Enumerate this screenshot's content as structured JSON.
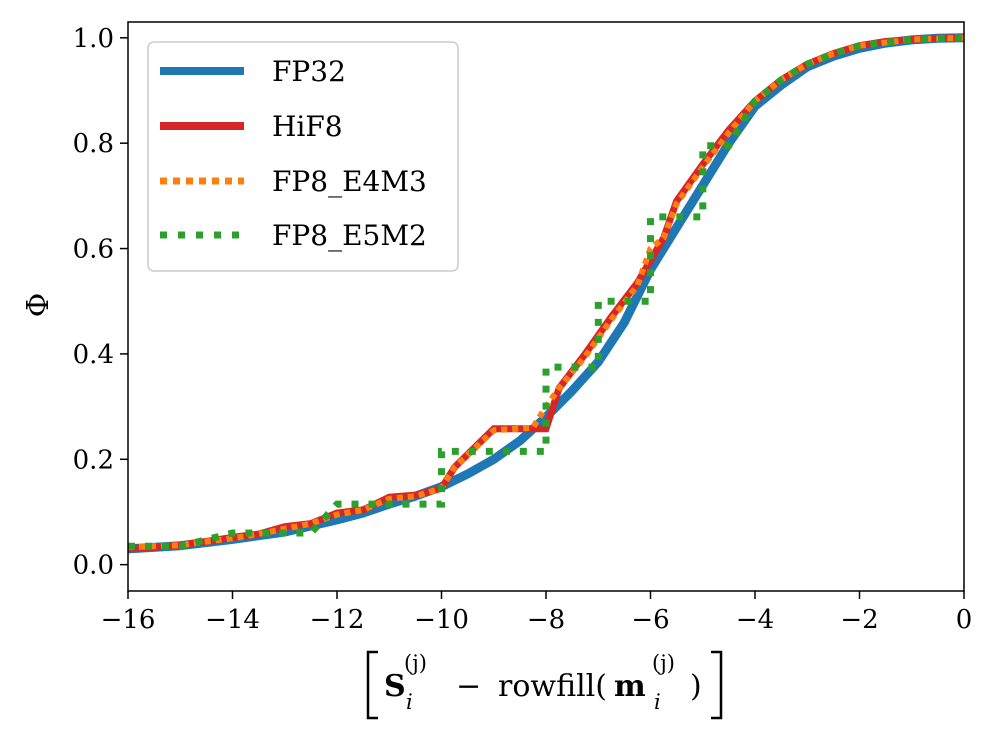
{
  "chart_data": {
    "type": "line",
    "title": "",
    "xlabel_parts": {
      "S": "S",
      "sub_i": "i",
      "sup_j": "(j)",
      "minus": "−",
      "rowfill": "rowfill(",
      "m": "m",
      "close": ")"
    },
    "ylabel": "Φ",
    "xlim": [
      -16,
      0
    ],
    "ylim": [
      -0.05,
      1.03
    ],
    "xticks": [
      -16,
      -14,
      -12,
      -10,
      -8,
      -6,
      -4,
      -2,
      0
    ],
    "xtick_labels": [
      "−16",
      "−14",
      "−12",
      "−10",
      "−8",
      "−6",
      "−4",
      "−2",
      "0"
    ],
    "yticks": [
      0.0,
      0.2,
      0.4,
      0.6,
      0.8,
      1.0
    ],
    "ytick_labels": [
      "0.0",
      "0.2",
      "0.4",
      "0.6",
      "0.8",
      "1.0"
    ],
    "grid": false,
    "legend_position": "top-left",
    "series": [
      {
        "name": "FP32",
        "color": "#1f77b4",
        "style": "solid",
        "points": [
          [
            -16,
            0.03
          ],
          [
            -15,
            0.036
          ],
          [
            -14,
            0.048
          ],
          [
            -13,
            0.062
          ],
          [
            -12,
            0.085
          ],
          [
            -11.5,
            0.098
          ],
          [
            -11,
            0.115
          ],
          [
            -10.5,
            0.13
          ],
          [
            -10,
            0.148
          ],
          [
            -9.5,
            0.172
          ],
          [
            -9,
            0.2
          ],
          [
            -8.5,
            0.235
          ],
          [
            -8,
            0.28
          ],
          [
            -7.5,
            0.33
          ],
          [
            -7,
            0.385
          ],
          [
            -6.5,
            0.46
          ],
          [
            -6,
            0.56
          ],
          [
            -5.5,
            0.64
          ],
          [
            -5,
            0.72
          ],
          [
            -4.5,
            0.8
          ],
          [
            -4,
            0.87
          ],
          [
            -3.5,
            0.91
          ],
          [
            -3,
            0.945
          ],
          [
            -2.5,
            0.965
          ],
          [
            -2,
            0.98
          ],
          [
            -1.5,
            0.99
          ],
          [
            -1,
            0.996
          ],
          [
            -0.5,
            0.999
          ],
          [
            0,
            1.0
          ]
        ]
      },
      {
        "name": "HiF8",
        "color": "#d62728",
        "style": "solid",
        "points": [
          [
            -16,
            0.03
          ],
          [
            -15.5,
            0.033
          ],
          [
            -15,
            0.037
          ],
          [
            -14.75,
            0.041
          ],
          [
            -14.5,
            0.044
          ],
          [
            -14.25,
            0.048
          ],
          [
            -14,
            0.052
          ],
          [
            -13.5,
            0.058
          ],
          [
            -13,
            0.072
          ],
          [
            -12.5,
            0.078
          ],
          [
            -12,
            0.098
          ],
          [
            -11.5,
            0.104
          ],
          [
            -11,
            0.128
          ],
          [
            -10.5,
            0.132
          ],
          [
            -10,
            0.145
          ],
          [
            -9.75,
            0.185
          ],
          [
            -9,
            0.258
          ],
          [
            -8,
            0.258
          ],
          [
            -7.75,
            0.335
          ],
          [
            -7.25,
            0.4
          ],
          [
            -6.75,
            0.47
          ],
          [
            -6.25,
            0.535
          ],
          [
            -5.75,
            0.62
          ],
          [
            -5.5,
            0.69
          ],
          [
            -5,
            0.76
          ],
          [
            -4.5,
            0.825
          ],
          [
            -4,
            0.88
          ],
          [
            -3.5,
            0.92
          ],
          [
            -3,
            0.95
          ],
          [
            -2.5,
            0.97
          ],
          [
            -2,
            0.985
          ],
          [
            -1.5,
            0.993
          ],
          [
            -1,
            0.997
          ],
          [
            -0.5,
            0.999
          ],
          [
            0,
            1.0
          ]
        ]
      },
      {
        "name": "FP8_E4M3",
        "color": "#ff7f0e",
        "style": "dotted",
        "points": [
          [
            -16,
            0.033
          ],
          [
            -15,
            0.037
          ],
          [
            -14.5,
            0.044
          ],
          [
            -14,
            0.05
          ],
          [
            -13.5,
            0.058
          ],
          [
            -13,
            0.068
          ],
          [
            -12.5,
            0.078
          ],
          [
            -12,
            0.095
          ],
          [
            -11.5,
            0.104
          ],
          [
            -11,
            0.125
          ],
          [
            -10.5,
            0.13
          ],
          [
            -10,
            0.145
          ],
          [
            -9.75,
            0.185
          ],
          [
            -9,
            0.255
          ],
          [
            -8.25,
            0.26
          ],
          [
            -8,
            0.3
          ],
          [
            -7.75,
            0.335
          ],
          [
            -7.25,
            0.395
          ],
          [
            -6.75,
            0.465
          ],
          [
            -6.25,
            0.53
          ],
          [
            -6,
            0.6
          ],
          [
            -5.75,
            0.62
          ],
          [
            -5.5,
            0.685
          ],
          [
            -5,
            0.755
          ],
          [
            -4.5,
            0.82
          ],
          [
            -4,
            0.88
          ],
          [
            -3.5,
            0.92
          ],
          [
            -3,
            0.95
          ],
          [
            -2.5,
            0.97
          ],
          [
            -2,
            0.985
          ],
          [
            -1,
            0.997
          ],
          [
            0,
            1.0
          ]
        ]
      },
      {
        "name": "FP8_E5M2",
        "color": "#2ca02c",
        "style": "dotted",
        "points": [
          [
            -16,
            0.035
          ],
          [
            -15,
            0.035
          ],
          [
            -14,
            0.06
          ],
          [
            -12.5,
            0.06
          ],
          [
            -12,
            0.115
          ],
          [
            -11,
            0.115
          ],
          [
            -11,
            0.115
          ],
          [
            -10,
            0.115
          ],
          [
            -10,
            0.215
          ],
          [
            -8,
            0.215
          ],
          [
            -8,
            0.375
          ],
          [
            -7,
            0.375
          ],
          [
            -7,
            0.5
          ],
          [
            -6,
            0.5
          ],
          [
            -6,
            0.66
          ],
          [
            -5,
            0.66
          ],
          [
            -5,
            0.795
          ],
          [
            -4.5,
            0.795
          ],
          [
            -4,
            0.88
          ],
          [
            -3.5,
            0.92
          ],
          [
            -3,
            0.95
          ],
          [
            -2.5,
            0.97
          ],
          [
            -2,
            0.985
          ],
          [
            -1,
            0.997
          ],
          [
            0,
            1.0
          ]
        ]
      }
    ]
  }
}
